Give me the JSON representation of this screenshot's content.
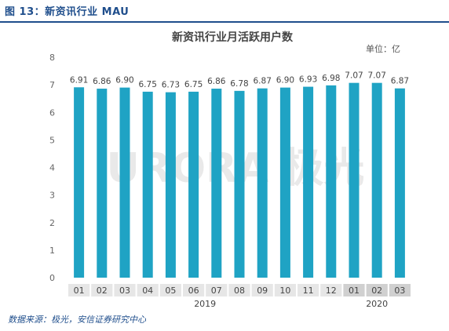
{
  "figure": {
    "title": "图 13：新资讯行业 MAU"
  },
  "source": "数据来源：极光，安信证券研究中心",
  "watermark": "URORA 极光",
  "chart_data": {
    "type": "bar",
    "title": "新资讯行业月活跃用户数",
    "unit_label": "单位：亿",
    "categories": [
      "01",
      "02",
      "03",
      "04",
      "05",
      "06",
      "07",
      "08",
      "09",
      "10",
      "11",
      "12",
      "01",
      "02",
      "03"
    ],
    "year_groups": [
      {
        "label": "2019",
        "start": 0,
        "end": 11
      },
      {
        "label": "2020",
        "start": 12,
        "end": 14
      }
    ],
    "series": [
      {
        "values": [
          6.91,
          6.86,
          6.9,
          6.75,
          6.73,
          6.75,
          6.86,
          6.78,
          6.87,
          6.9,
          6.93,
          6.98,
          7.07,
          7.07,
          6.87
        ]
      }
    ],
    "data_labels": [
      "6.91",
      "6.86",
      "6.90",
      "6.75",
      "6.73",
      "6.75",
      "6.86",
      "6.78",
      "6.87",
      "6.90",
      "6.93",
      "6.98",
      "7.07",
      "7.07",
      "6.87"
    ],
    "yticks": [
      "0",
      "1",
      "2",
      "3",
      "4",
      "5",
      "6",
      "7",
      "8"
    ],
    "ylim": [
      0,
      8
    ],
    "grid": false,
    "colors": {
      "bar": "#1fa3c4",
      "title_blue": "#1f4e8c",
      "axis_text": "#666666",
      "category_band": "#e6e6e6",
      "category_band_alt": "#d0d0d0",
      "watermark": "#e9e9e9"
    }
  }
}
